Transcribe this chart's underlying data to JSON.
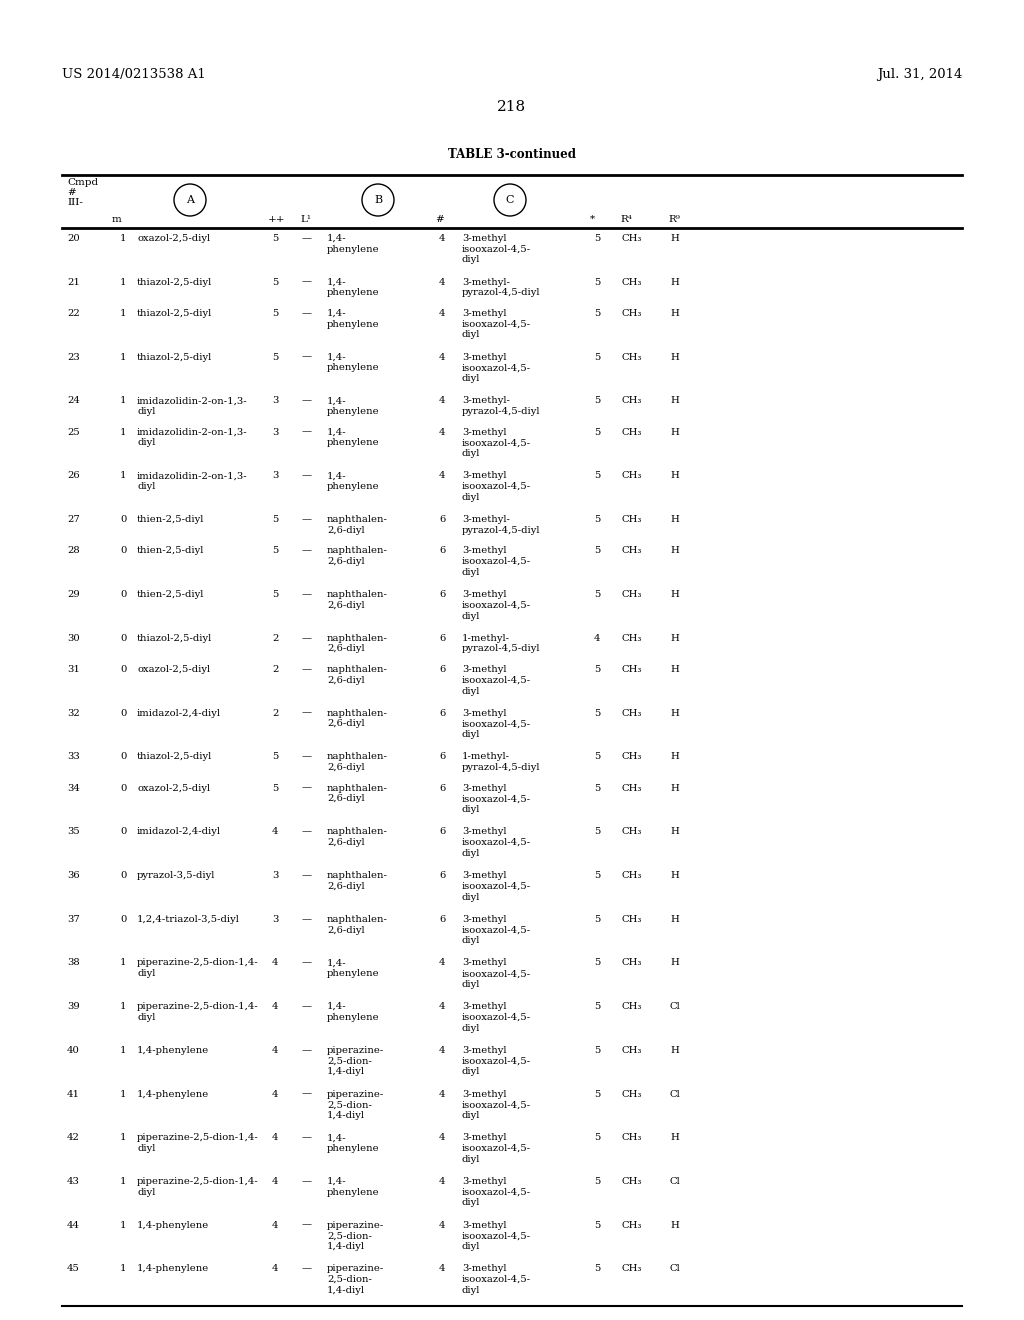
{
  "page_number": "218",
  "patent_number": "US 2014/0213538 A1",
  "patent_date": "Jul. 31, 2014",
  "table_title": "TABLE 3-continued",
  "background_color": "#ffffff",
  "text_color": "#000000",
  "rows": [
    [
      "20",
      "1",
      "oxazol-2,5-diyl",
      "5",
      "—",
      "1,4-\nphenylene",
      "4",
      "3-methyl\nisooxazol-4,5-\ndiyl",
      "5",
      "CH₃",
      "H"
    ],
    [
      "21",
      "1",
      "thiazol-2,5-diyl",
      "5",
      "—",
      "1,4-\nphenylene",
      "4",
      "3-methyl-\npyrazol-4,5-diyl",
      "5",
      "CH₃",
      "H"
    ],
    [
      "22",
      "1",
      "thiazol-2,5-diyl",
      "5",
      "—",
      "1,4-\nphenylene",
      "4",
      "3-methyl\nisooxazol-4,5-\ndiyl",
      "5",
      "CH₃",
      "H"
    ],
    [
      "23",
      "1",
      "thiazol-2,5-diyl",
      "5",
      "—",
      "1,4-\nphenylene",
      "4",
      "3-methyl\nisooxazol-4,5-\ndiyl",
      "5",
      "CH₃",
      "H"
    ],
    [
      "24",
      "1",
      "imidazolidin-2-on-1,3-\ndiyl",
      "3",
      "—",
      "1,4-\nphenylene",
      "4",
      "3-methyl-\npyrazol-4,5-diyl",
      "5",
      "CH₃",
      "H"
    ],
    [
      "25",
      "1",
      "imidazolidin-2-on-1,3-\ndiyl",
      "3",
      "—",
      "1,4-\nphenylene",
      "4",
      "3-methyl\nisooxazol-4,5-\ndiyl",
      "5",
      "CH₃",
      "H"
    ],
    [
      "26",
      "1",
      "imidazolidin-2-on-1,3-\ndiyl",
      "3",
      "—",
      "1,4-\nphenylene",
      "4",
      "3-methyl\nisooxazol-4,5-\ndiyl",
      "5",
      "CH₃",
      "H"
    ],
    [
      "27",
      "0",
      "thien-2,5-diyl",
      "5",
      "—",
      "naphthalen-\n2,6-diyl",
      "6",
      "3-methyl-\npyrazol-4,5-diyl",
      "5",
      "CH₃",
      "H"
    ],
    [
      "28",
      "0",
      "thien-2,5-diyl",
      "5",
      "—",
      "naphthalen-\n2,6-diyl",
      "6",
      "3-methyl\nisooxazol-4,5-\ndiyl",
      "5",
      "CH₃",
      "H"
    ],
    [
      "29",
      "0",
      "thien-2,5-diyl",
      "5",
      "—",
      "naphthalen-\n2,6-diyl",
      "6",
      "3-methyl\nisooxazol-4,5-\ndiyl",
      "5",
      "CH₃",
      "H"
    ],
    [
      "30",
      "0",
      "thiazol-2,5-diyl",
      "2",
      "—",
      "naphthalen-\n2,6-diyl",
      "6",
      "1-methyl-\npyrazol-4,5-diyl",
      "4",
      "CH₃",
      "H"
    ],
    [
      "31",
      "0",
      "oxazol-2,5-diyl",
      "2",
      "—",
      "naphthalen-\n2,6-diyl",
      "6",
      "3-methyl\nisooxazol-4,5-\ndiyl",
      "5",
      "CH₃",
      "H"
    ],
    [
      "32",
      "0",
      "imidazol-2,4-diyl",
      "2",
      "—",
      "naphthalen-\n2,6-diyl",
      "6",
      "3-methyl\nisooxazol-4,5-\ndiyl",
      "5",
      "CH₃",
      "H"
    ],
    [
      "33",
      "0",
      "thiazol-2,5-diyl",
      "5",
      "—",
      "naphthalen-\n2,6-diyl",
      "6",
      "1-methyl-\npyrazol-4,5-diyl",
      "5",
      "CH₃",
      "H"
    ],
    [
      "34",
      "0",
      "oxazol-2,5-diyl",
      "5",
      "—",
      "naphthalen-\n2,6-diyl",
      "6",
      "3-methyl\nisooxazol-4,5-\ndiyl",
      "5",
      "CH₃",
      "H"
    ],
    [
      "35",
      "0",
      "imidazol-2,4-diyl",
      "4",
      "—",
      "naphthalen-\n2,6-diyl",
      "6",
      "3-methyl\nisooxazol-4,5-\ndiyl",
      "5",
      "CH₃",
      "H"
    ],
    [
      "36",
      "0",
      "pyrazol-3,5-diyl",
      "3",
      "—",
      "naphthalen-\n2,6-diyl",
      "6",
      "3-methyl\nisooxazol-4,5-\ndiyl",
      "5",
      "CH₃",
      "H"
    ],
    [
      "37",
      "0",
      "1,2,4-triazol-3,5-diyl",
      "3",
      "—",
      "naphthalen-\n2,6-diyl",
      "6",
      "3-methyl\nisooxazol-4,5-\ndiyl",
      "5",
      "CH₃",
      "H"
    ],
    [
      "38",
      "1",
      "piperazine-2,5-dion-1,4-\ndiyl",
      "4",
      "—",
      "1,4-\nphenylene",
      "4",
      "3-methyl\nisooxazol-4,5-\ndiyl",
      "5",
      "CH₃",
      "H"
    ],
    [
      "39",
      "1",
      "piperazine-2,5-dion-1,4-\ndiyl",
      "4",
      "—",
      "1,4-\nphenylene",
      "4",
      "3-methyl\nisooxazol-4,5-\ndiyl",
      "5",
      "CH₃",
      "Cl"
    ],
    [
      "40",
      "1",
      "1,4-phenylene",
      "4",
      "—",
      "piperazine-\n2,5-dion-\n1,4-diyl",
      "4",
      "3-methyl\nisooxazol-4,5-\ndiyl",
      "5",
      "CH₃",
      "H"
    ],
    [
      "41",
      "1",
      "1,4-phenylene",
      "4",
      "—",
      "piperazine-\n2,5-dion-\n1,4-diyl",
      "4",
      "3-methyl\nisooxazol-4,5-\ndiyl",
      "5",
      "CH₃",
      "Cl"
    ],
    [
      "42",
      "1",
      "piperazine-2,5-dion-1,4-\ndiyl",
      "4",
      "—",
      "1,4-\nphenylene",
      "4",
      "3-methyl\nisooxazol-4,5-\ndiyl",
      "5",
      "CH₃",
      "H"
    ],
    [
      "43",
      "1",
      "piperazine-2,5-dion-1,4-\ndiyl",
      "4",
      "—",
      "1,4-\nphenylene",
      "4",
      "3-methyl\nisooxazol-4,5-\ndiyl",
      "5",
      "CH₃",
      "Cl"
    ],
    [
      "44",
      "1",
      "1,4-phenylene",
      "4",
      "—",
      "piperazine-\n2,5-dion-\n1,4-diyl",
      "4",
      "3-methyl\nisooxazol-4,5-\ndiyl",
      "5",
      "CH₃",
      "H"
    ],
    [
      "45",
      "1",
      "1,4-phenylene",
      "4",
      "—",
      "piperazine-\n2,5-dion-\n1,4-diyl",
      "4",
      "3-methyl\nisooxazol-4,5-\ndiyl",
      "5",
      "CH₃",
      "Cl"
    ]
  ]
}
